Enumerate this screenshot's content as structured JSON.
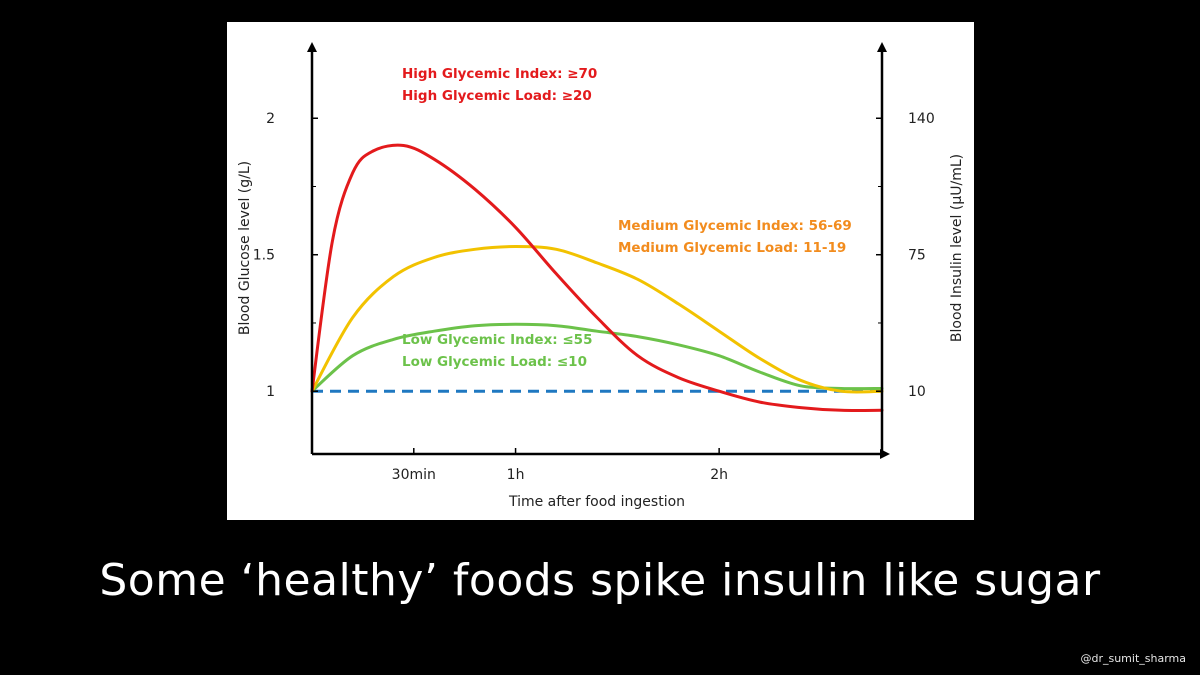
{
  "chart_data": {
    "type": "line",
    "x_ticks": [
      {
        "label": "30min",
        "x": 0.5
      },
      {
        "label": "1h",
        "x": 1.0
      },
      {
        "label": "2h",
        "x": 2.0
      }
    ],
    "xlabel": "Time after food ingestion",
    "xlim": [
      0,
      2.8
    ],
    "ylabel_left": "Blood Glucose level (g/L)",
    "ylim_left": [
      0.77,
      2.25
    ],
    "y_ticks_left": [
      1,
      1.5,
      2
    ],
    "y_tick_labels_left": [
      "1",
      "1.5",
      "2"
    ],
    "ylabel_right": "Blood Insulin level (µU/mL)",
    "y_ticks_right": [
      {
        "label": "10",
        "at": 1.0
      },
      {
        "label": "75",
        "at": 1.5
      },
      {
        "label": "140",
        "at": 2.0
      }
    ],
    "baseline": {
      "value": 1.0,
      "color": "#1f78c1",
      "style": "dashed"
    },
    "series": [
      {
        "name": "High",
        "color": "#e31a1c",
        "x": [
          0,
          0.1,
          0.2,
          0.3,
          0.45,
          0.6,
          0.8,
          1.0,
          1.2,
          1.4,
          1.6,
          1.8,
          2.0,
          2.2,
          2.4,
          2.6,
          2.8
        ],
        "y": [
          1.0,
          1.55,
          1.8,
          1.88,
          1.9,
          1.85,
          1.74,
          1.6,
          1.43,
          1.27,
          1.13,
          1.05,
          1.0,
          0.96,
          0.94,
          0.93,
          0.93
        ]
      },
      {
        "name": "Medium",
        "color": "#f2c200",
        "x": [
          0,
          0.2,
          0.4,
          0.6,
          0.8,
          1.0,
          1.2,
          1.4,
          1.6,
          1.8,
          2.0,
          2.2,
          2.4,
          2.6,
          2.8
        ],
        "y": [
          1.0,
          1.27,
          1.42,
          1.49,
          1.52,
          1.53,
          1.52,
          1.47,
          1.41,
          1.32,
          1.22,
          1.12,
          1.04,
          1.0,
          1.0
        ]
      },
      {
        "name": "Low",
        "color": "#6cc24a",
        "x": [
          0,
          0.2,
          0.4,
          0.6,
          0.8,
          1.0,
          1.2,
          1.4,
          1.6,
          1.8,
          2.0,
          2.2,
          2.4,
          2.6,
          2.8
        ],
        "y": [
          1.0,
          1.13,
          1.19,
          1.22,
          1.24,
          1.245,
          1.24,
          1.22,
          1.2,
          1.17,
          1.13,
          1.07,
          1.02,
          1.01,
          1.01
        ]
      }
    ],
    "annotations": [
      {
        "lines": [
          "High Glycemic Index: ≥70",
          "High Glycemic Load: ≥20"
        ],
        "color": "#e31a1c"
      },
      {
        "lines": [
          "Medium Glycemic Index: 56-69",
          "Medium Glycemic Load: 11-19"
        ],
        "color": "#f28c1e"
      },
      {
        "lines": [
          "Low Glycemic Index: ≤55",
          "Low Glycemic Load: ≤10"
        ],
        "color": "#6cc24a"
      }
    ]
  },
  "caption": "Some ‘healthy’ foods spike insulin like sugar",
  "watermark": "@dr_sumit_sharma"
}
